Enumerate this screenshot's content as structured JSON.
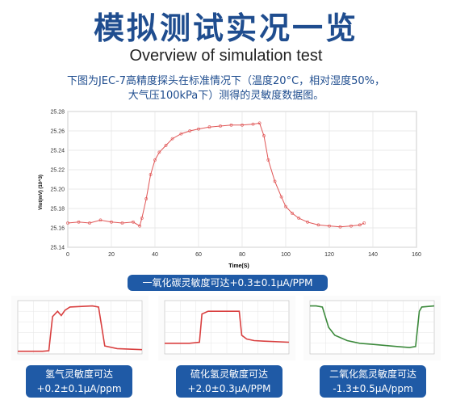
{
  "header": {
    "title": "模拟测试实况一览",
    "subtitle": "Overview of simulation test",
    "description_line1": "下图为JEC-7高精度探头在标准情况下（温度20°C，相对湿度50%，",
    "description_line2": "大气压100kPa下）测得的灵敏度数据图。"
  },
  "badges": {
    "co": "一氧化碳灵敏度可达+0.3±0.1μA/PPM",
    "h2_line1": "氢气灵敏度可达",
    "h2_line2": "+0.2±0.1μA/ppm",
    "h2s_line1": "硫化氢灵敏度可达",
    "h2s_line2": "+2.0±0.3μA/PPM",
    "no2_line1": "二氧化氮灵敏度可达",
    "no2_line2": "-1.3±0.5μA/ppm"
  },
  "colors": {
    "title": "#1f4d8f",
    "badge": "#1f5aa6",
    "main_series": "#e05555",
    "h2_series": "#d94040",
    "h2s_series": "#d94040",
    "no2_series": "#3c8a3c"
  },
  "chart_data": [
    {
      "type": "line",
      "ylabel": "Vlot(mV) (10^3)",
      "xlabel": "Time(S)",
      "xlim": [
        0,
        160
      ],
      "ylim": [
        25.14,
        25.28
      ],
      "x_ticks": [
        "0",
        "20",
        "40",
        "60",
        "80",
        "100",
        "120",
        "140",
        "160"
      ],
      "y_ticks": [
        "25.14",
        "25.16",
        "25.18",
        "25.20",
        "25.22",
        "25.24",
        "25.26",
        "25.28"
      ],
      "grid": true,
      "series": [
        {
          "x": [
            0,
            5,
            10,
            15,
            20,
            25,
            30,
            33,
            34,
            36,
            38,
            40,
            42,
            45,
            48,
            52,
            56,
            60,
            65,
            70,
            75,
            80,
            85,
            88,
            90,
            92,
            95,
            98,
            100,
            103,
            106,
            110,
            115,
            120,
            125,
            130,
            134,
            136
          ],
          "y": [
            25.165,
            25.166,
            25.165,
            25.168,
            25.166,
            25.165,
            25.166,
            25.162,
            25.17,
            25.19,
            25.215,
            25.23,
            25.238,
            25.245,
            25.252,
            25.257,
            25.26,
            25.262,
            25.264,
            25.265,
            25.266,
            25.266,
            25.267,
            25.268,
            25.255,
            25.23,
            25.208,
            25.192,
            25.182,
            25.175,
            25.17,
            25.166,
            25.163,
            25.162,
            25.161,
            25.162,
            25.163,
            25.165
          ]
        }
      ]
    },
    {
      "type": "line",
      "series": [
        {
          "x": [
            0,
            10,
            20,
            25,
            28,
            32,
            35,
            38,
            42,
            50,
            60,
            65,
            70,
            80,
            100
          ],
          "y": [
            0.05,
            0.05,
            0.05,
            0.06,
            0.7,
            0.8,
            0.72,
            0.82,
            0.88,
            0.89,
            0.9,
            0.88,
            0.15,
            0.1,
            0.08
          ]
        }
      ]
    },
    {
      "type": "line",
      "series": [
        {
          "x": [
            0,
            10,
            20,
            28,
            30,
            35,
            50,
            60,
            62,
            66,
            72,
            80,
            100
          ],
          "y": [
            0.2,
            0.2,
            0.2,
            0.22,
            0.75,
            0.8,
            0.8,
            0.8,
            0.35,
            0.28,
            0.25,
            0.24,
            0.22
          ]
        }
      ]
    },
    {
      "type": "line",
      "series": [
        {
          "x": [
            0,
            5,
            10,
            15,
            20,
            30,
            40,
            50,
            60,
            70,
            80,
            85,
            88,
            90,
            100
          ],
          "y": [
            0.9,
            0.9,
            0.88,
            0.5,
            0.35,
            0.25,
            0.2,
            0.18,
            0.16,
            0.14,
            0.12,
            0.14,
            0.8,
            0.88,
            0.9
          ]
        }
      ]
    }
  ]
}
